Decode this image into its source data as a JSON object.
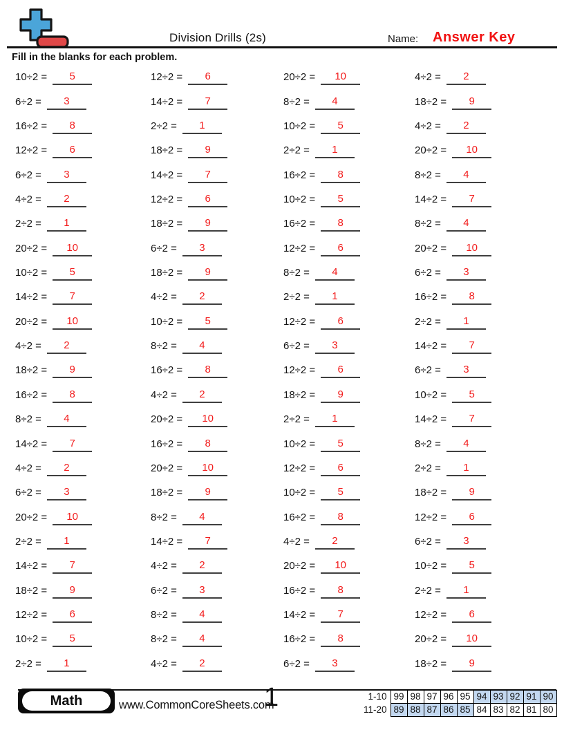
{
  "header": {
    "title": "Division Drills (2s)",
    "name_label": "Name:",
    "answer_key": "Answer Key",
    "instructions": "Fill in the blanks for each problem."
  },
  "problems": {
    "columns": [
      [
        {
          "q": "10÷2 =",
          "a": "5"
        },
        {
          "q": "6÷2 =",
          "a": "3"
        },
        {
          "q": "16÷2 =",
          "a": "8"
        },
        {
          "q": "12÷2 =",
          "a": "6"
        },
        {
          "q": "6÷2 =",
          "a": "3"
        },
        {
          "q": "4÷2 =",
          "a": "2"
        },
        {
          "q": "2÷2 =",
          "a": "1"
        },
        {
          "q": "20÷2 =",
          "a": "10"
        },
        {
          "q": "10÷2 =",
          "a": "5"
        },
        {
          "q": "14÷2 =",
          "a": "7"
        },
        {
          "q": "20÷2 =",
          "a": "10"
        },
        {
          "q": "4÷2 =",
          "a": "2"
        },
        {
          "q": "18÷2 =",
          "a": "9"
        },
        {
          "q": "16÷2 =",
          "a": "8"
        },
        {
          "q": "8÷2 =",
          "a": "4"
        },
        {
          "q": "14÷2 =",
          "a": "7"
        },
        {
          "q": "4÷2 =",
          "a": "2"
        },
        {
          "q": "6÷2 =",
          "a": "3"
        },
        {
          "q": "20÷2 =",
          "a": "10"
        },
        {
          "q": "2÷2 =",
          "a": "1"
        },
        {
          "q": "14÷2 =",
          "a": "7"
        },
        {
          "q": "18÷2 =",
          "a": "9"
        },
        {
          "q": "12÷2 =",
          "a": "6"
        },
        {
          "q": "10÷2 =",
          "a": "5"
        },
        {
          "q": "2÷2 =",
          "a": "1"
        }
      ],
      [
        {
          "q": "12÷2 =",
          "a": "6"
        },
        {
          "q": "14÷2 =",
          "a": "7"
        },
        {
          "q": "2÷2 =",
          "a": "1"
        },
        {
          "q": "18÷2 =",
          "a": "9"
        },
        {
          "q": "14÷2 =",
          "a": "7"
        },
        {
          "q": "12÷2 =",
          "a": "6"
        },
        {
          "q": "18÷2 =",
          "a": "9"
        },
        {
          "q": "6÷2 =",
          "a": "3"
        },
        {
          "q": "18÷2 =",
          "a": "9"
        },
        {
          "q": "4÷2 =",
          "a": "2"
        },
        {
          "q": "10÷2 =",
          "a": "5"
        },
        {
          "q": "8÷2 =",
          "a": "4"
        },
        {
          "q": "16÷2 =",
          "a": "8"
        },
        {
          "q": "4÷2 =",
          "a": "2"
        },
        {
          "q": "20÷2 =",
          "a": "10"
        },
        {
          "q": "16÷2 =",
          "a": "8"
        },
        {
          "q": "20÷2 =",
          "a": "10"
        },
        {
          "q": "18÷2 =",
          "a": "9"
        },
        {
          "q": "8÷2 =",
          "a": "4"
        },
        {
          "q": "14÷2 =",
          "a": "7"
        },
        {
          "q": "4÷2 =",
          "a": "2"
        },
        {
          "q": "6÷2 =",
          "a": "3"
        },
        {
          "q": "8÷2 =",
          "a": "4"
        },
        {
          "q": "8÷2 =",
          "a": "4"
        },
        {
          "q": "4÷2 =",
          "a": "2"
        }
      ],
      [
        {
          "q": "20÷2 =",
          "a": "10"
        },
        {
          "q": "8÷2 =",
          "a": "4"
        },
        {
          "q": "10÷2 =",
          "a": "5"
        },
        {
          "q": "2÷2 =",
          "a": "1"
        },
        {
          "q": "16÷2 =",
          "a": "8"
        },
        {
          "q": "10÷2 =",
          "a": "5"
        },
        {
          "q": "16÷2 =",
          "a": "8"
        },
        {
          "q": "12÷2 =",
          "a": "6"
        },
        {
          "q": "8÷2 =",
          "a": "4"
        },
        {
          "q": "2÷2 =",
          "a": "1"
        },
        {
          "q": "12÷2 =",
          "a": "6"
        },
        {
          "q": "6÷2 =",
          "a": "3"
        },
        {
          "q": "12÷2 =",
          "a": "6"
        },
        {
          "q": "18÷2 =",
          "a": "9"
        },
        {
          "q": "2÷2 =",
          "a": "1"
        },
        {
          "q": "10÷2 =",
          "a": "5"
        },
        {
          "q": "12÷2 =",
          "a": "6"
        },
        {
          "q": "10÷2 =",
          "a": "5"
        },
        {
          "q": "16÷2 =",
          "a": "8"
        },
        {
          "q": "4÷2 =",
          "a": "2"
        },
        {
          "q": "20÷2 =",
          "a": "10"
        },
        {
          "q": "16÷2 =",
          "a": "8"
        },
        {
          "q": "14÷2 =",
          "a": "7"
        },
        {
          "q": "16÷2 =",
          "a": "8"
        },
        {
          "q": "6÷2 =",
          "a": "3"
        }
      ],
      [
        {
          "q": "4÷2 =",
          "a": "2"
        },
        {
          "q": "18÷2 =",
          "a": "9"
        },
        {
          "q": "4÷2 =",
          "a": "2"
        },
        {
          "q": "20÷2 =",
          "a": "10"
        },
        {
          "q": "8÷2 =",
          "a": "4"
        },
        {
          "q": "14÷2 =",
          "a": "7"
        },
        {
          "q": "8÷2 =",
          "a": "4"
        },
        {
          "q": "20÷2 =",
          "a": "10"
        },
        {
          "q": "6÷2 =",
          "a": "3"
        },
        {
          "q": "16÷2 =",
          "a": "8"
        },
        {
          "q": "2÷2 =",
          "a": "1"
        },
        {
          "q": "14÷2 =",
          "a": "7"
        },
        {
          "q": "6÷2 =",
          "a": "3"
        },
        {
          "q": "10÷2 =",
          "a": "5"
        },
        {
          "q": "14÷2 =",
          "a": "7"
        },
        {
          "q": "8÷2 =",
          "a": "4"
        },
        {
          "q": "2÷2 =",
          "a": "1"
        },
        {
          "q": "18÷2 =",
          "a": "9"
        },
        {
          "q": "12÷2 =",
          "a": "6"
        },
        {
          "q": "6÷2 =",
          "a": "3"
        },
        {
          "q": "10÷2 =",
          "a": "5"
        },
        {
          "q": "2÷2 =",
          "a": "1"
        },
        {
          "q": "12÷2 =",
          "a": "6"
        },
        {
          "q": "20÷2 =",
          "a": "10"
        },
        {
          "q": "18÷2 =",
          "a": "9"
        }
      ]
    ]
  },
  "footer": {
    "subject": "Math",
    "website": "www.CommonCoreSheets.com",
    "page_number": "1",
    "score_table": {
      "rows": [
        {
          "label": "1-10",
          "cells": [
            {
              "v": "99",
              "hl": false
            },
            {
              "v": "98",
              "hl": false
            },
            {
              "v": "97",
              "hl": false
            },
            {
              "v": "96",
              "hl": false
            },
            {
              "v": "95",
              "hl": false
            },
            {
              "v": "94",
              "hl": true
            },
            {
              "v": "93",
              "hl": true
            },
            {
              "v": "92",
              "hl": true
            },
            {
              "v": "91",
              "hl": true
            },
            {
              "v": "90",
              "hl": true
            }
          ]
        },
        {
          "label": "11-20",
          "cells": [
            {
              "v": "89",
              "hl": true
            },
            {
              "v": "88",
              "hl": true
            },
            {
              "v": "87",
              "hl": true
            },
            {
              "v": "86",
              "hl": true
            },
            {
              "v": "85",
              "hl": true
            },
            {
              "v": "84",
              "hl": false
            },
            {
              "v": "83",
              "hl": false
            },
            {
              "v": "82",
              "hl": false
            },
            {
              "v": "81",
              "hl": false
            },
            {
              "v": "80",
              "hl": false
            }
          ]
        }
      ]
    }
  },
  "colors": {
    "answer_red": "#f21c1c",
    "answer_key_red": "#f11212",
    "score_highlight_blue": "#c3d8f0",
    "logo_blue": "#4ba5d9",
    "logo_red": "#e04848"
  }
}
